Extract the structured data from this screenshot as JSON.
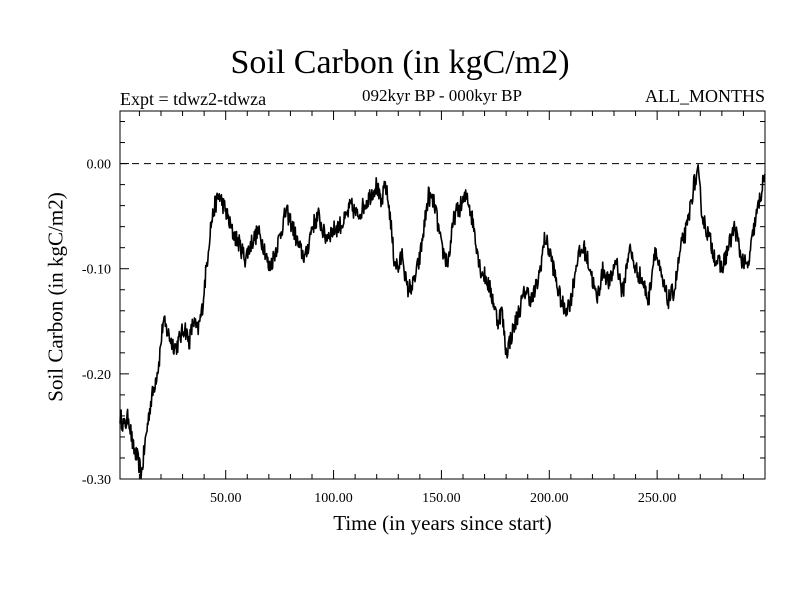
{
  "chart_data": {
    "type": "line",
    "title": "Soil Carbon (in kgC/m2)",
    "experiment_label": "Expt = tdwz2-tdwza",
    "period_label": "092kyr BP - 000kyr BP",
    "months_label": "ALL_MONTHS",
    "xlabel": "Time (in years since start)",
    "ylabel": "Soil Carbon (in kgC/m2)",
    "xlim": [
      1,
      300
    ],
    "ylim": [
      -0.3,
      0.05
    ],
    "x_ticks": [
      {
        "value": 50,
        "label": "50.00"
      },
      {
        "value": 100,
        "label": "100.00"
      },
      {
        "value": 150,
        "label": "150.00"
      },
      {
        "value": 200,
        "label": "200.00"
      },
      {
        "value": 250,
        "label": "250.00"
      }
    ],
    "y_ticks": [
      {
        "value": 0.0,
        "label": "0.00"
      },
      {
        "value": -0.1,
        "label": "-0.10"
      },
      {
        "value": -0.2,
        "label": "-0.20"
      },
      {
        "value": -0.3,
        "label": "-0.30"
      }
    ],
    "reference_line": {
      "y": 0.0,
      "style": "dashed"
    },
    "grid": false,
    "series": [
      {
        "color": "#000000",
        "x": [
          1,
          3,
          5,
          7,
          9,
          11,
          13,
          15,
          17,
          19,
          21,
          23,
          25,
          27,
          29,
          31,
          33,
          35,
          37,
          39,
          41,
          43,
          45,
          47,
          50,
          53,
          56,
          59,
          62,
          65,
          68,
          70,
          72,
          75,
          78,
          81,
          84,
          87,
          90,
          93,
          96,
          99,
          102,
          105,
          108,
          111,
          114,
          117,
          120,
          122,
          124,
          126,
          128,
          130,
          132,
          134,
          137,
          140,
          142,
          144,
          147,
          150,
          153,
          156,
          159,
          162,
          165,
          168,
          171,
          174,
          176,
          178,
          180,
          183,
          186,
          189,
          192,
          195,
          198,
          201,
          204,
          207,
          210,
          213,
          216,
          219,
          222,
          225,
          228,
          231,
          234,
          237,
          240,
          243,
          246,
          249,
          252,
          255,
          258,
          261,
          264,
          267,
          269,
          271,
          274,
          277,
          280,
          283,
          286,
          289,
          292,
          295,
          298,
          300
        ],
        "values": [
          -0.24,
          -0.25,
          -0.24,
          -0.27,
          -0.28,
          -0.295,
          -0.26,
          -0.23,
          -0.21,
          -0.19,
          -0.15,
          -0.16,
          -0.17,
          -0.175,
          -0.165,
          -0.155,
          -0.17,
          -0.15,
          -0.16,
          -0.14,
          -0.1,
          -0.06,
          -0.04,
          -0.03,
          -0.045,
          -0.065,
          -0.075,
          -0.09,
          -0.075,
          -0.065,
          -0.08,
          -0.1,
          -0.09,
          -0.07,
          -0.045,
          -0.06,
          -0.08,
          -0.09,
          -0.06,
          -0.05,
          -0.07,
          -0.065,
          -0.06,
          -0.055,
          -0.04,
          -0.05,
          -0.04,
          -0.03,
          -0.02,
          -0.04,
          -0.02,
          -0.045,
          -0.09,
          -0.1,
          -0.085,
          -0.12,
          -0.115,
          -0.09,
          -0.06,
          -0.03,
          -0.04,
          -0.08,
          -0.095,
          -0.05,
          -0.04,
          -0.03,
          -0.06,
          -0.1,
          -0.11,
          -0.13,
          -0.15,
          -0.14,
          -0.18,
          -0.16,
          -0.14,
          -0.12,
          -0.13,
          -0.11,
          -0.07,
          -0.09,
          -0.12,
          -0.14,
          -0.13,
          -0.09,
          -0.08,
          -0.1,
          -0.13,
          -0.1,
          -0.115,
          -0.09,
          -0.125,
          -0.08,
          -0.1,
          -0.11,
          -0.13,
          -0.08,
          -0.11,
          -0.13,
          -0.12,
          -0.08,
          -0.06,
          -0.02,
          -0.01,
          -0.05,
          -0.07,
          -0.09,
          -0.1,
          -0.08,
          -0.06,
          -0.09,
          -0.1,
          -0.06,
          -0.03,
          -0.01
        ]
      }
    ]
  }
}
